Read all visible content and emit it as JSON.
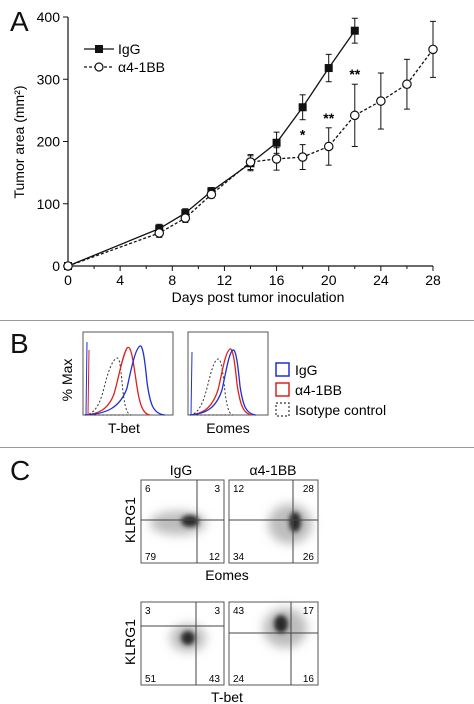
{
  "panels": {
    "a_letter": "A",
    "b_letter": "B",
    "c_letter": "C"
  },
  "chart_data": [
    {
      "type": "line",
      "xlabel": "Days post tumor inoculation",
      "ylabel": "Tumor area (mm²)",
      "xlim": [
        0,
        28
      ],
      "ylim": [
        0,
        400
      ],
      "x_ticks": [
        "0",
        "4",
        "8",
        "12",
        "16",
        "20",
        "24",
        "28"
      ],
      "y_ticks": [
        "0",
        "100",
        "200",
        "300",
        "400"
      ],
      "legend_position": "top-left",
      "series": [
        {
          "name": "IgG",
          "marker": "filled-square",
          "line": "solid",
          "x": [
            0,
            7,
            9,
            11,
            14,
            16,
            18,
            20,
            22
          ],
          "y": [
            0,
            60,
            85,
            120,
            165,
            198,
            255,
            318,
            378
          ],
          "err": [
            3,
            7,
            7,
            6,
            12,
            17,
            20,
            22,
            20
          ]
        },
        {
          "name": "α4-1BB",
          "marker": "open-circle",
          "line": "dashed",
          "x": [
            0,
            7,
            9,
            11,
            14,
            16,
            18,
            20,
            22,
            24,
            26,
            28
          ],
          "y": [
            0,
            53,
            77,
            115,
            167,
            172,
            175,
            192,
            242,
            265,
            292,
            348
          ],
          "err": [
            3,
            7,
            7,
            6,
            12,
            18,
            20,
            30,
            50,
            45,
            40,
            45
          ]
        }
      ],
      "annotations": [
        {
          "text": "*",
          "x": 18
        },
        {
          "text": "**",
          "x": 20
        },
        {
          "text": "**",
          "x": 22
        }
      ]
    },
    {
      "type": "area",
      "ylabel": "% Max",
      "panels": [
        "T-bet",
        "Eomes"
      ],
      "legend": [
        {
          "name": "IgG",
          "color": "#1f2fd6",
          "style": "solid"
        },
        {
          "name": "α4-1BB",
          "color": "#e0201d",
          "style": "solid"
        },
        {
          "name": "Isotype control",
          "color": "#333333",
          "style": "dashed"
        }
      ]
    },
    {
      "type": "heatmap",
      "column_headers": [
        "IgG",
        "α4-1BB"
      ],
      "plots": [
        {
          "row": 0,
          "col": 0,
          "ylabel": "KLRG1",
          "xlabel": "Eomes",
          "quadrants": [
            "6",
            "3",
            "79",
            "12"
          ]
        },
        {
          "row": 0,
          "col": 1,
          "ylabel": "KLRG1",
          "xlabel": "Eomes",
          "quadrants": [
            "12",
            "28",
            "34",
            "26"
          ]
        },
        {
          "row": 1,
          "col": 0,
          "ylabel": "KLRG1",
          "xlabel": "T-bet",
          "quadrants": [
            "3",
            "3",
            "51",
            "43"
          ]
        },
        {
          "row": 1,
          "col": 1,
          "ylabel": "KLRG1",
          "xlabel": "T-bet",
          "quadrants": [
            "43",
            "17",
            "24",
            "16"
          ]
        }
      ]
    }
  ]
}
